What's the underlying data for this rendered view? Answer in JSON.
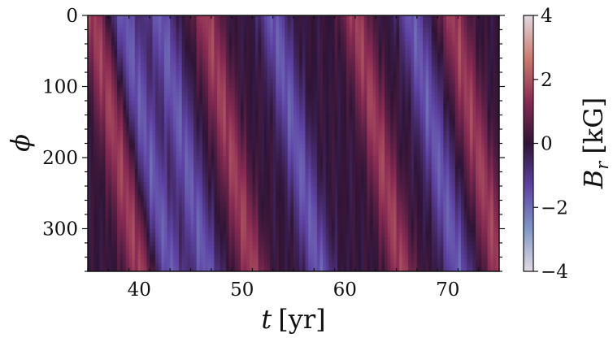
{
  "chart_data": {
    "type": "heatmap",
    "title": "",
    "xlabel": "t [yr]",
    "xlabel_var": "t",
    "xlabel_unit": "[yr]",
    "ylabel": "ϕ",
    "xlim": [
      35,
      75
    ],
    "ylim": [
      360,
      0
    ],
    "x_ticks": [
      40,
      50,
      60,
      70
    ],
    "x_tick_labels": [
      "40",
      "50",
      "60",
      "70"
    ],
    "y_ticks": [
      0,
      100,
      200,
      300
    ],
    "y_tick_labels": [
      "0",
      "100",
      "200",
      "300"
    ],
    "colorbar": {
      "label": "B_r [kG]",
      "label_var": "B",
      "label_sub": "r",
      "label_unit": "[kG]",
      "range": [
        -4,
        4
      ],
      "ticks": [
        -4,
        -2,
        0,
        2,
        4
      ],
      "tick_labels": [
        "−4",
        "−2",
        "0",
        "2",
        "4"
      ],
      "colormap": "twilight_shifted",
      "colors": [
        "#e2d9e2",
        "#7f97c5",
        "#5e43a5",
        "#2f1436",
        "#8a2b53",
        "#cd7a6d",
        "#e2d9e2"
      ]
    },
    "field": {
      "description_of_pattern": "diagonal stripes drifting in phi with time",
      "drift_deg_per_yr": 80,
      "wave_period_yr": 12.5,
      "amplitude_kG": 1.7,
      "positive_band_centers_t_at_phi0": [
        35.5,
        46.5,
        61.0,
        70.5
      ],
      "negative_band_centers_t_at_phi0": [
        38.5,
        42.0,
        53.0,
        66.5
      ]
    }
  }
}
